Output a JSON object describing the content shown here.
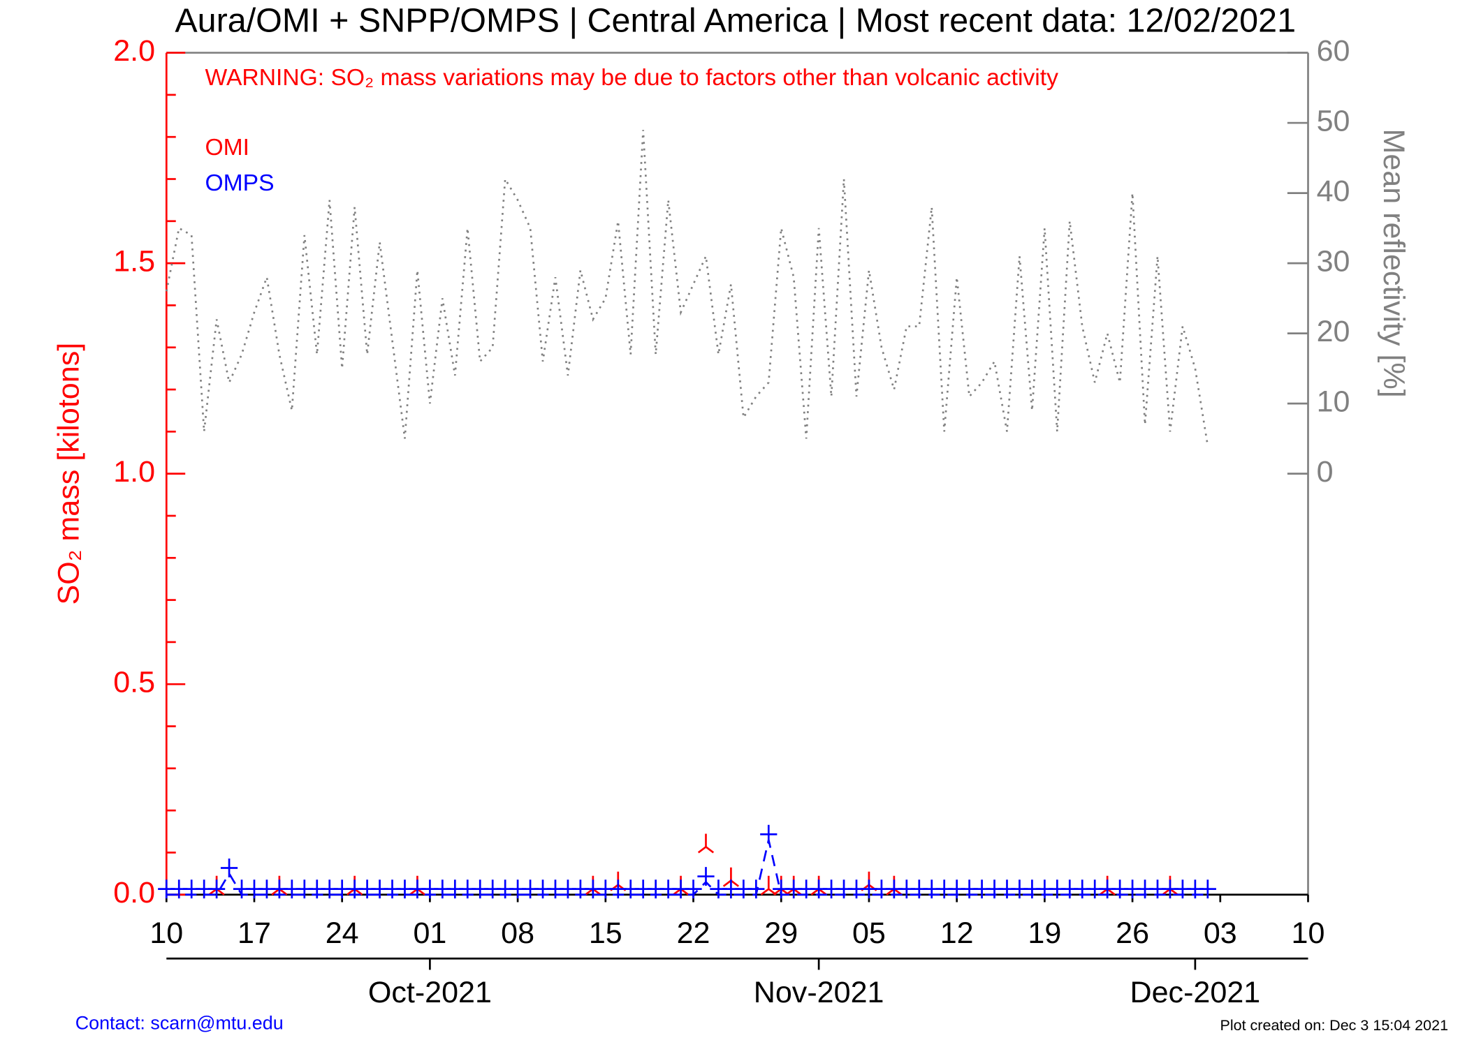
{
  "chart_data": {
    "type": "line",
    "title": "Aura/OMI + SNPP/OMPS | Central America | Most recent data: 12/02/2021",
    "annotation": "WARNING: SO₂ mass variations may be due to factors other than volcanic activity",
    "ylabel": "SO₂ mass [kilotons]",
    "y2label": "Mean reflectivity [%]",
    "contact": "Contact: scarn@mtu.edu",
    "created": "Plot created on: Dec  3 15:04 2021",
    "xlim": [
      "2021-09-10",
      "2021-12-10"
    ],
    "xticks": [
      {
        "value": "2021-09-10",
        "label": "10"
      },
      {
        "value": "2021-09-17",
        "label": "17"
      },
      {
        "value": "2021-09-24",
        "label": "24"
      },
      {
        "value": "2021-10-01",
        "label": "01"
      },
      {
        "value": "2021-10-08",
        "label": "08"
      },
      {
        "value": "2021-10-15",
        "label": "15"
      },
      {
        "value": "2021-10-22",
        "label": "22"
      },
      {
        "value": "2021-10-29",
        "label": "29"
      },
      {
        "value": "2021-11-05",
        "label": "05"
      },
      {
        "value": "2021-11-12",
        "label": "12"
      },
      {
        "value": "2021-11-19",
        "label": "19"
      },
      {
        "value": "2021-11-26",
        "label": "26"
      },
      {
        "value": "2021-12-03",
        "label": "03"
      },
      {
        "value": "2021-12-10",
        "label": "10"
      }
    ],
    "x2ticks": [
      {
        "value": "2021-10-01",
        "label": "Oct-2021"
      },
      {
        "value": "2021-11-01",
        "label": "Nov-2021"
      },
      {
        "value": "2021-12-01",
        "label": "Dec-2021"
      }
    ],
    "ylim": [
      0,
      2.0
    ],
    "yticks": [
      {
        "value": 0,
        "label": "0.0"
      },
      0.5,
      {
        "value": 1,
        "label": "1.0"
      },
      1.5,
      {
        "value": 2,
        "label": "2.0"
      }
    ],
    "yminorticks": [
      0.1,
      0.2,
      0.3,
      0.4,
      0.6,
      0.7,
      0.8,
      0.9,
      1.1,
      1.2,
      1.3,
      1.4,
      1.6,
      1.7,
      1.8,
      1.9
    ],
    "y2lim": [
      -60,
      60
    ],
    "y2ticks": [
      0,
      10,
      20,
      30,
      40,
      50,
      60
    ],
    "x": [
      "2021-09-10",
      "2021-09-11",
      "2021-09-12",
      "2021-09-13",
      "2021-09-14",
      "2021-09-15",
      "2021-09-16",
      "2021-09-17",
      "2021-09-18",
      "2021-09-19",
      "2021-09-20",
      "2021-09-21",
      "2021-09-22",
      "2021-09-23",
      "2021-09-24",
      "2021-09-25",
      "2021-09-26",
      "2021-09-27",
      "2021-09-28",
      "2021-09-29",
      "2021-09-30",
      "2021-10-01",
      "2021-10-02",
      "2021-10-03",
      "2021-10-04",
      "2021-10-05",
      "2021-10-06",
      "2021-10-07",
      "2021-10-08",
      "2021-10-09",
      "2021-10-10",
      "2021-10-11",
      "2021-10-12",
      "2021-10-13",
      "2021-10-14",
      "2021-10-15",
      "2021-10-16",
      "2021-10-17",
      "2021-10-18",
      "2021-10-19",
      "2021-10-20",
      "2021-10-21",
      "2021-10-22",
      "2021-10-23",
      "2021-10-24",
      "2021-10-25",
      "2021-10-26",
      "2021-10-27",
      "2021-10-28",
      "2021-10-29",
      "2021-10-30",
      "2021-10-31",
      "2021-11-01",
      "2021-11-02",
      "2021-11-03",
      "2021-11-04",
      "2021-11-05",
      "2021-11-06",
      "2021-11-07",
      "2021-11-08",
      "2021-11-09",
      "2021-11-10",
      "2021-11-11",
      "2021-11-12",
      "2021-11-13",
      "2021-11-14",
      "2021-11-15",
      "2021-11-16",
      "2021-11-17",
      "2021-11-18",
      "2021-11-19",
      "2021-11-20",
      "2021-11-21",
      "2021-11-22",
      "2021-11-23",
      "2021-11-24",
      "2021-11-25",
      "2021-11-26",
      "2021-11-27",
      "2021-11-28",
      "2021-11-29",
      "2021-11-30",
      "2021-12-01",
      "2021-12-02"
    ],
    "series": [
      {
        "name": "OMI",
        "color": "#ff0000",
        "marker": "asterisk",
        "values": [
          null,
          null,
          null,
          null,
          0,
          null,
          null,
          null,
          null,
          0,
          null,
          null,
          null,
          null,
          null,
          0,
          null,
          null,
          null,
          null,
          0,
          null,
          null,
          null,
          null,
          null,
          null,
          null,
          null,
          null,
          null,
          null,
          null,
          null,
          0,
          null,
          0.01,
          null,
          null,
          null,
          null,
          0,
          null,
          0.1,
          null,
          0.02,
          null,
          null,
          0,
          0,
          0,
          null,
          0,
          null,
          null,
          null,
          0.01,
          null,
          0,
          null,
          null,
          null,
          null,
          null,
          null,
          null,
          null,
          null,
          null,
          null,
          null,
          null,
          null,
          null,
          null,
          0,
          null,
          null,
          null,
          null,
          0,
          null,
          null,
          null
        ]
      },
      {
        "name": "OMPS",
        "color": "#0000ff",
        "marker": "plus",
        "values": [
          0,
          0,
          0,
          0,
          0,
          0.05,
          0,
          0,
          0,
          0,
          0,
          0,
          0,
          0,
          0,
          0,
          0,
          0,
          0,
          0,
          0,
          0,
          0,
          0,
          0,
          0,
          0,
          0,
          0,
          0,
          0,
          0,
          0,
          0,
          0,
          0,
          0,
          0,
          0,
          0,
          0,
          0,
          0,
          0.03,
          0,
          0,
          0,
          0,
          0.13,
          0,
          0,
          0,
          0,
          0,
          0,
          0,
          0,
          0,
          0,
          0,
          0,
          0,
          0,
          0,
          0,
          0,
          0,
          0,
          0,
          0,
          0,
          0,
          0,
          0,
          0,
          0,
          0,
          0,
          0,
          0,
          0,
          0,
          0,
          0
        ]
      },
      {
        "name": "Mean reflectivity",
        "color": "#808080",
        "axis": "y2",
        "values": [
          26,
          35,
          34,
          6,
          22,
          13,
          17,
          23,
          28,
          17,
          9,
          34,
          17,
          39,
          15,
          38,
          17,
          33,
          19,
          5,
          29,
          10,
          25,
          14,
          35,
          16,
          18,
          42,
          39,
          35,
          16,
          28,
          14,
          29,
          22,
          25,
          36,
          17,
          49,
          17,
          39,
          23,
          27,
          31,
          17,
          27,
          8,
          11,
          13,
          35,
          28,
          5,
          35,
          11,
          42,
          11,
          29,
          18,
          12,
          21,
          21,
          38,
          6,
          28,
          11,
          13,
          16,
          6,
          31,
          9,
          35,
          6,
          36,
          21,
          13,
          20,
          13,
          40,
          7,
          31,
          6,
          21,
          15,
          4
        ]
      }
    ],
    "legend_series": [
      0,
      1
    ]
  }
}
